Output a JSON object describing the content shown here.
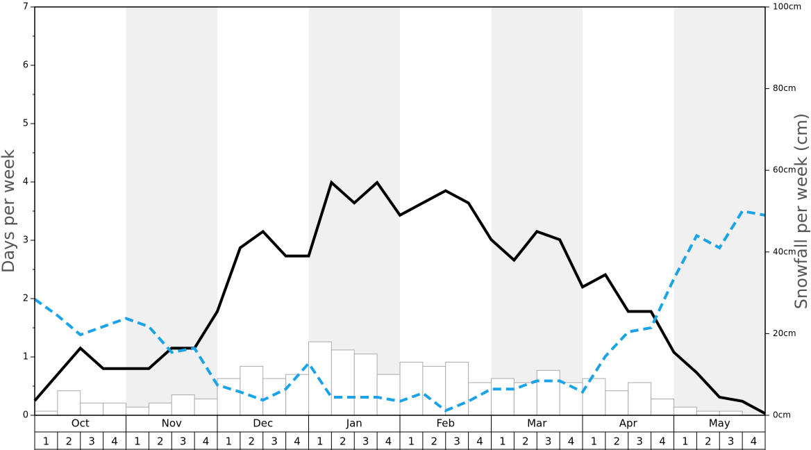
{
  "chart_data": {
    "type": "bar-line",
    "ylabel": "Days per week",
    "y2label": "Snowfall per week (cm)",
    "ylim": [
      0,
      7
    ],
    "yticks": [
      0,
      1,
      2,
      3,
      4,
      5,
      6,
      7
    ],
    "yminorticks": [
      0.5,
      1.5,
      2.5,
      3.5,
      4.5,
      5.5,
      6.5
    ],
    "y2lim": [
      0,
      100
    ],
    "y2ticks": [
      {
        "value": 0,
        "label": "0cm"
      },
      {
        "value": 20,
        "label": "20cm"
      },
      {
        "value": 40,
        "label": "40cm"
      },
      {
        "value": 60,
        "label": "60cm"
      },
      {
        "value": 80,
        "label": "80cm"
      },
      {
        "value": 100,
        "label": "100cm"
      }
    ],
    "months": [
      "Oct",
      "Nov",
      "Dec",
      "Jan",
      "Feb",
      "Mar",
      "Apr",
      "May"
    ],
    "weeks": [
      1,
      2,
      3,
      4
    ],
    "shaded_color": "#f0f0f0",
    "bars": {
      "axis": "y2",
      "color": "#ffffff",
      "edge": "#aaaaaa",
      "values": [
        1,
        6,
        3,
        3,
        2,
        3,
        5,
        4,
        9,
        12,
        9,
        10,
        18,
        16,
        15,
        10,
        13,
        12,
        13,
        8,
        9,
        8,
        11,
        8,
        9,
        6,
        8,
        4,
        2,
        1,
        1,
        0
      ]
    },
    "series": [
      {
        "color": "#000000",
        "dashed": false,
        "values": [
          0.25,
          0.7,
          1.15,
          0.8,
          0.8,
          0.8,
          1.15,
          1.15,
          1.78,
          2.87,
          3.15,
          2.73,
          2.73,
          3.99,
          3.64,
          3.99,
          3.43,
          3.64,
          3.85,
          3.64,
          3.01,
          2.66,
          3.15,
          3.01,
          2.2,
          2.41,
          1.78,
          1.78,
          1.08,
          0.73,
          0.31,
          0.24,
          0.03
        ]
      },
      {
        "color": "#1aa3e8",
        "dashed": true,
        "values": [
          1.99,
          1.71,
          1.38,
          1.52,
          1.66,
          1.52,
          1.08,
          1.15,
          0.52,
          0.4,
          0.26,
          0.45,
          0.89,
          0.31,
          0.31,
          0.31,
          0.24,
          0.38,
          0.08,
          0.24,
          0.45,
          0.45,
          0.59,
          0.59,
          0.4,
          1.01,
          1.43,
          1.5,
          2.34,
          3.08,
          2.87,
          3.5,
          3.43
        ]
      }
    ]
  }
}
